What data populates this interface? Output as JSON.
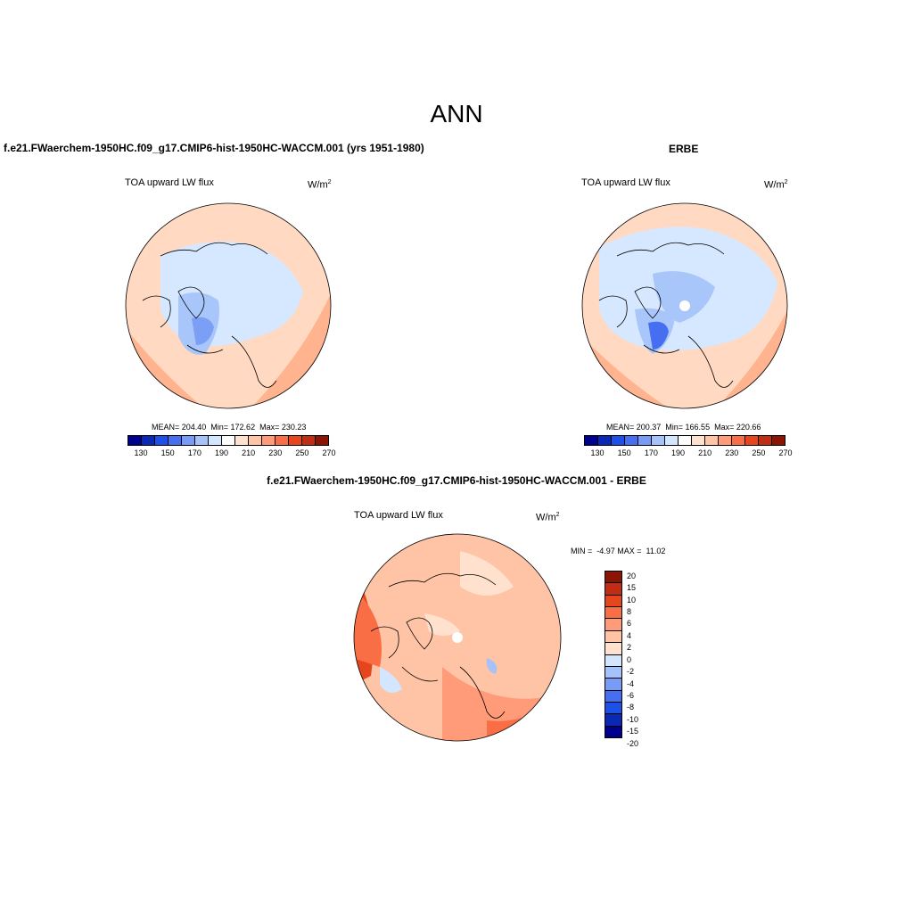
{
  "title": "ANN",
  "panel1": {
    "header": "f.e21.FWaerchem-1950HC.f09_g17.CMIP6-hist-1950HC-WACCM.001 (yrs 1951-1980)",
    "variable": "TOA upward LW flux",
    "units_base": "W/m",
    "units_exp": "2",
    "stats": "MEAN= 204.40  Min= 172.62  Max= 230.23"
  },
  "panel2": {
    "header": "ERBE",
    "variable": "TOA upward LW flux",
    "units_base": "W/m",
    "units_exp": "2",
    "stats": "MEAN= 200.37  Min= 166.55  Max= 220.66"
  },
  "panel3": {
    "header": "f.e21.FWaerchem-1950HC.f09_g17.CMIP6-hist-1950HC-WACCM.001 - ERBE",
    "variable": "TOA upward LW flux",
    "units_base": "W/m",
    "units_exp": "2",
    "stats": "MIN =  -4.97 MAX =  11.02"
  },
  "colorbar_abs": {
    "colors": [
      "#00008c",
      "#0a28b4",
      "#1e50e6",
      "#466ef0",
      "#789bf5",
      "#a5c3fa",
      "#d2e6ff",
      "#ffffff",
      "#ffe1cd",
      "#ffc3a5",
      "#ff9b78",
      "#fa6e46",
      "#e6461e",
      "#be2d14",
      "#8c1405"
    ],
    "labels": [
      "130",
      "150",
      "170",
      "190",
      "210",
      "230",
      "250",
      "270"
    ]
  },
  "colorbar_diff": {
    "colors": [
      "#8c1405",
      "#be2d14",
      "#e6461e",
      "#fa6e46",
      "#ff9b78",
      "#ffc3a5",
      "#ffe1cd",
      "#d2e6ff",
      "#a5c3fa",
      "#789bf5",
      "#466ef0",
      "#1e50e6",
      "#0a28b4",
      "#00008c"
    ],
    "labels": [
      "20",
      "15",
      "10",
      "8",
      "6",
      "4",
      "2",
      "0",
      "-2",
      "-4",
      "-6",
      "-8",
      "-10",
      "-15",
      "-20"
    ]
  }
}
